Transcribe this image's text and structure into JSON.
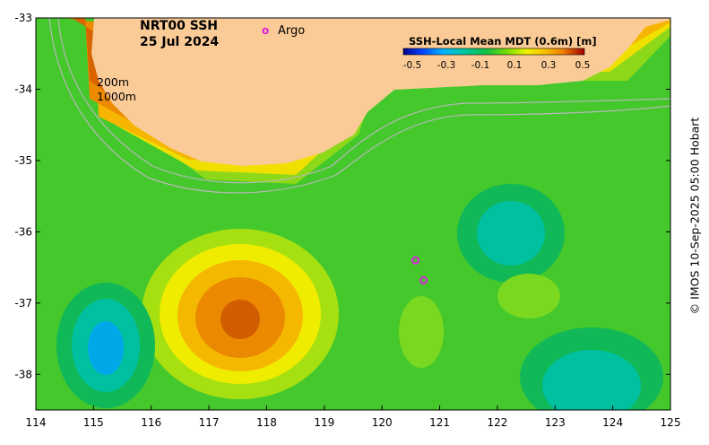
{
  "map": {
    "title_line1": "NRT00 SSH",
    "title_line2": "25 Jul 2024",
    "legend_argo": "Argo",
    "legend_argo_symbol": "o",
    "depth_label_1": "200m",
    "depth_label_2": "1000m",
    "colorbar_title": "SSH-Local Mean MDT (0.6m) [m]",
    "colorbar_ticks": [
      "-0.5",
      "-0.3",
      "-0.1",
      "0.1",
      "0.3",
      "0.5"
    ],
    "x_ticks": [
      "114",
      "115",
      "116",
      "117",
      "118",
      "119",
      "120",
      "121",
      "122",
      "123",
      "124",
      "125"
    ],
    "y_ticks": [
      "-33",
      "-34",
      "-35",
      "-36",
      "-37",
      "-38"
    ],
    "credit": "© IMOS 10-Sep-2025 05:00 Hobart",
    "x_range": [
      114,
      125
    ],
    "y_range": [
      -38.5,
      -33
    ],
    "colors": {
      "land": "#fbcb97",
      "argo": "#e020e0",
      "isobath": "#b8b8b8"
    },
    "argo_floats": [
      {
        "lon": 120.58,
        "lat": -36.4
      },
      {
        "lon": 120.72,
        "lat": -36.68
      }
    ]
  }
}
